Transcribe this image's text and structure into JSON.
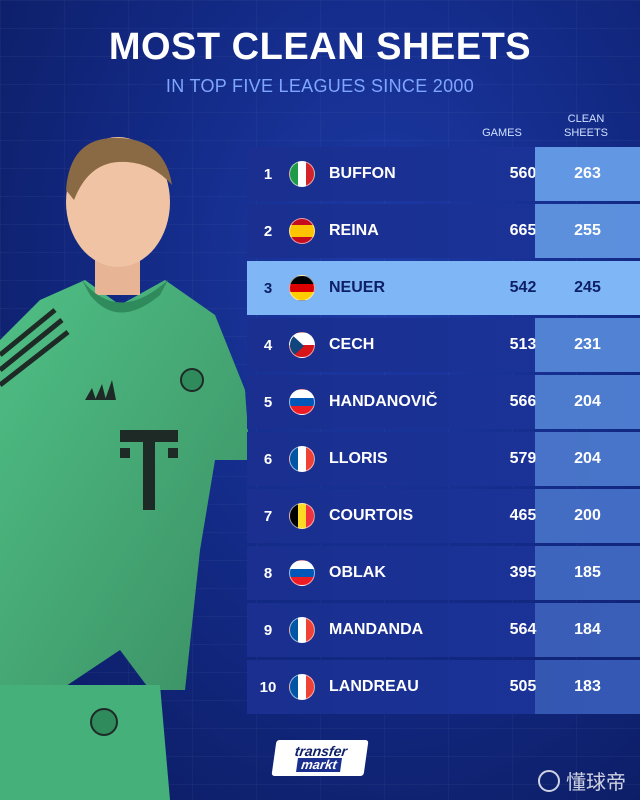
{
  "header": {
    "title": "MOST CLEAN SHEETS",
    "subtitle": "IN TOP FIVE LEAGUES SINCE 2000"
  },
  "columns": {
    "games": "GAMES",
    "clean_line1": "CLEAN",
    "clean_line2": "SHEETS"
  },
  "rows": [
    {
      "rank": "1",
      "name": "BUFFON",
      "games": "560",
      "clean_sheets": "263",
      "flag": "italy",
      "highlight": false
    },
    {
      "rank": "2",
      "name": "REINA",
      "games": "665",
      "clean_sheets": "255",
      "flag": "spain",
      "highlight": false
    },
    {
      "rank": "3",
      "name": "NEUER",
      "games": "542",
      "clean_sheets": "245",
      "flag": "germany",
      "highlight": true
    },
    {
      "rank": "4",
      "name": "CECH",
      "games": "513",
      "clean_sheets": "231",
      "flag": "czech-republic",
      "highlight": false
    },
    {
      "rank": "5",
      "name": "HANDANOVIČ",
      "games": "566",
      "clean_sheets": "204",
      "flag": "slovenia",
      "highlight": false
    },
    {
      "rank": "6",
      "name": "LLORIS",
      "games": "579",
      "clean_sheets": "204",
      "flag": "france",
      "highlight": false
    },
    {
      "rank": "7",
      "name": "COURTOIS",
      "games": "465",
      "clean_sheets": "200",
      "flag": "belgium",
      "highlight": false
    },
    {
      "rank": "8",
      "name": "OBLAK",
      "games": "395",
      "clean_sheets": "185",
      "flag": "slovenia",
      "highlight": false
    },
    {
      "rank": "9",
      "name": "MANDANDA",
      "games": "564",
      "clean_sheets": "184",
      "flag": "france",
      "highlight": false
    },
    {
      "rank": "10",
      "name": "LANDREAU",
      "games": "505",
      "clean_sheets": "183",
      "flag": "france",
      "highlight": false
    }
  ],
  "branding": {
    "logo_line1": "transfer",
    "logo_line2": "markt",
    "watermark": "懂球帝"
  },
  "colors": {
    "background": "#132a86",
    "row": "#1a2f8f",
    "highlight_row": "#7fb6f5",
    "subtitle": "#7ea6ff",
    "jersey": "#4fbf85"
  }
}
